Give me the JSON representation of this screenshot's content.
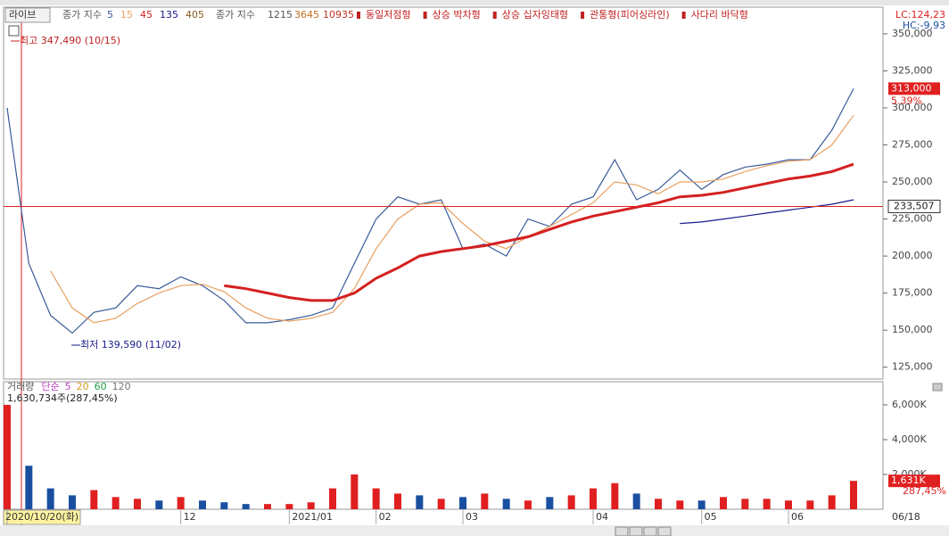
{
  "toolbar": {
    "mode": "라이브",
    "legend_label": "종가 지수",
    "legend_extra": [
      "405"
    ],
    "legend_label_2": "종가 지수",
    "legend_extra_2": [
      "1215",
      "3645",
      "10935"
    ],
    "patterns": [
      "동일저점형",
      "상승 박차형",
      "상승 십자잉태형",
      "관통형(피어싱라인)",
      "사다리 바닥형"
    ]
  },
  "right_info": {
    "lc": "LC:124,23",
    "hc": "HC:-9,93"
  },
  "chart_data": [
    {
      "type": "line",
      "annotations": {
        "high": "최고 347,490 (10/15)",
        "low": "최저 139,590 (11/02)"
      },
      "categories": [
        "2020/10/20(화)",
        null,
        null,
        null,
        null,
        null,
        null,
        null,
        "12",
        null,
        null,
        null,
        null,
        "2021/01",
        null,
        null,
        null,
        "02",
        null,
        null,
        null,
        "03",
        null,
        null,
        null,
        null,
        null,
        "04",
        null,
        null,
        null,
        null,
        "05",
        null,
        null,
        null,
        "06",
        null,
        null,
        null
      ],
      "end_label": "06/18",
      "series": [
        {
          "name": "5",
          "color": "#3a5a9a",
          "values": [
            300000,
            195000,
            160000,
            148000,
            162000,
            165000,
            180000,
            178000,
            186000,
            180000,
            170000,
            155000,
            155000,
            157000,
            160000,
            165000,
            195000,
            225000,
            240000,
            235000,
            238000,
            205000,
            208000,
            200000,
            225000,
            220000,
            235000,
            240000,
            265000,
            238000,
            245000,
            258000,
            245000,
            255000,
            260000,
            262000,
            265000,
            265000,
            285000,
            313000
          ]
        },
        {
          "name": "15",
          "color": "#e8a060",
          "values": [
            null,
            null,
            190000,
            165000,
            155000,
            158000,
            168000,
            175000,
            180000,
            181000,
            176000,
            165000,
            158000,
            156000,
            158000,
            162000,
            178000,
            205000,
            225000,
            235000,
            236000,
            222000,
            210000,
            205000,
            213000,
            220000,
            228000,
            236000,
            250000,
            248000,
            242000,
            250000,
            250000,
            252000,
            257000,
            261000,
            264000,
            265000,
            275000,
            295000
          ]
        },
        {
          "name": "45",
          "color": "#d42020",
          "values": [
            null,
            null,
            null,
            null,
            null,
            null,
            null,
            null,
            null,
            null,
            180000,
            178000,
            175000,
            172000,
            170000,
            170000,
            175000,
            185000,
            192000,
            200000,
            203000,
            205000,
            207000,
            210000,
            213000,
            218000,
            223000,
            227000,
            230000,
            233000,
            236000,
            240000,
            241000,
            243000,
            246000,
            249000,
            252000,
            254000,
            257000,
            262000
          ]
        },
        {
          "name": "135",
          "color": "#1a1a8c",
          "values": [
            null,
            null,
            null,
            null,
            null,
            null,
            null,
            null,
            null,
            null,
            null,
            null,
            null,
            null,
            null,
            null,
            null,
            null,
            null,
            null,
            null,
            null,
            null,
            null,
            null,
            null,
            null,
            null,
            null,
            null,
            null,
            222000,
            223000,
            225000,
            227000,
            229000,
            231000,
            233000,
            235000,
            238000
          ]
        }
      ],
      "markers": [
        {
          "value": 313000,
          "label": "313,000",
          "change": "5.39%"
        },
        {
          "value": 233507,
          "label": "233,507"
        }
      ],
      "ylim": [
        117000,
        368000
      ],
      "yticks": [
        {
          "value": 125000,
          "label": "125,000"
        },
        {
          "value": 150000,
          "label": "150,000"
        },
        {
          "value": 175000,
          "label": "175,000"
        },
        {
          "value": 200000,
          "label": "200,000"
        },
        {
          "value": 225000,
          "label": "225,000"
        },
        {
          "value": 250000,
          "label": "250,000"
        },
        {
          "value": 275000,
          "label": "275,000"
        },
        {
          "value": 300000,
          "label": "300,000"
        },
        {
          "value": 325000,
          "label": "325,000"
        },
        {
          "value": 350000,
          "label": "350,000"
        }
      ]
    },
    {
      "type": "bar",
      "title": "거래량",
      "legend": [
        "단순",
        "5",
        "20",
        "60",
        "120"
      ],
      "info": "1,630,734주(287,45%)",
      "values": [
        6000,
        2500,
        1200,
        800,
        1100,
        700,
        600,
        500,
        700,
        500,
        400,
        300,
        300,
        300,
        400,
        1200,
        2000,
        1200,
        900,
        800,
        600,
        700,
        900,
        600,
        500,
        700,
        800,
        1200,
        1500,
        900,
        600,
        500,
        500,
        700,
        600,
        600,
        500,
        500,
        800,
        1631
      ],
      "value_labels": [
        null,
        null,
        null,
        null,
        null,
        null,
        null,
        null,
        null,
        null,
        null,
        null,
        null,
        null,
        null,
        null,
        null,
        null,
        null,
        null,
        null,
        null,
        null,
        null,
        null,
        null,
        null,
        null,
        null,
        null,
        null,
        null,
        null,
        null,
        null,
        null,
        null,
        null,
        null,
        "1,631K"
      ],
      "last_change": "287,45%",
      "up_color": "#e02020",
      "down_color": "#1a4fa0",
      "ylim": [
        0,
        7330
      ],
      "yticks": [
        {
          "value": 2000,
          "label": "2,000K"
        },
        {
          "value": 4000,
          "label": "4,000K"
        },
        {
          "value": 6000,
          "label": "6,000K"
        }
      ]
    }
  ]
}
